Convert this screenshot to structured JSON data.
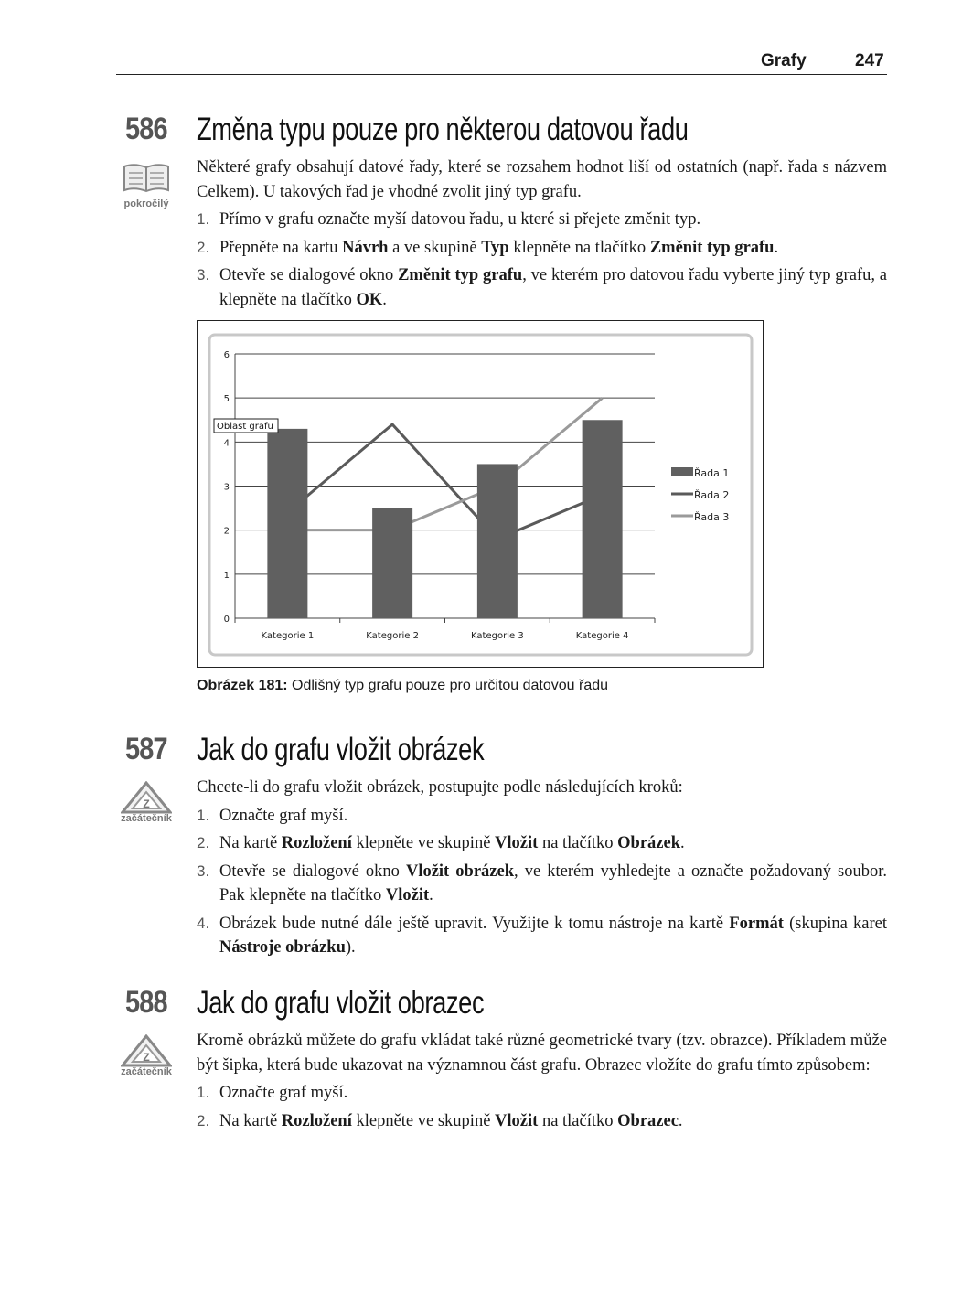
{
  "header": {
    "chapter": "Grafy",
    "page": "247"
  },
  "sections": [
    {
      "number": "586",
      "title": "Změna typu pouze pro některou datovou řadu",
      "badge": {
        "icon": "book-icon",
        "label": "pokročilý"
      },
      "paras": [
        [
          {
            "t": "Některé grafy obsahují datové řady, které se rozsahem hodnot liší od ostatních (např. řada s názvem Celkem). U takových řad je vhodné zvolit jiný typ grafu."
          }
        ]
      ],
      "steps": [
        {
          "n": "1.",
          "parts": [
            {
              "t": "Přímo v grafu označte myší datovou řadu, u které si přejete změnit typ."
            }
          ]
        },
        {
          "n": "2.",
          "parts": [
            {
              "t": "Přepněte na kartu "
            },
            {
              "t": "Návrh",
              "b": true
            },
            {
              "t": " a ve skupině "
            },
            {
              "t": "Typ",
              "b": true
            },
            {
              "t": " klepněte na tlačítko "
            },
            {
              "t": "Změnit typ grafu",
              "b": true
            },
            {
              "t": "."
            }
          ]
        },
        {
          "n": "3.",
          "parts": [
            {
              "t": "Otevře se dialogové okno "
            },
            {
              "t": "Změnit typ grafu",
              "b": true
            },
            {
              "t": ", ve kterém pro datovou řadu vyberte jiný typ grafu, a klepněte na tlačítko "
            },
            {
              "t": "OK",
              "b": true
            },
            {
              "t": "."
            }
          ]
        }
      ]
    },
    {
      "number": "587",
      "title": "Jak do grafu vložit obrázek",
      "badge": {
        "icon": "beginner-triangle-icon",
        "label": "začátečník"
      },
      "paras": [
        [
          {
            "t": "Chcete-li do grafu vložit obrázek, postupujte podle následujících kroků:"
          }
        ]
      ],
      "steps": [
        {
          "n": "1.",
          "parts": [
            {
              "t": "Označte graf myší."
            }
          ]
        },
        {
          "n": "2.",
          "parts": [
            {
              "t": "Na kartě "
            },
            {
              "t": "Rozložení",
              "b": true
            },
            {
              "t": " klepněte ve skupině "
            },
            {
              "t": "Vložit",
              "b": true
            },
            {
              "t": " na tlačítko "
            },
            {
              "t": "Obrázek",
              "b": true
            },
            {
              "t": "."
            }
          ]
        },
        {
          "n": "3.",
          "parts": [
            {
              "t": "Otevře se dialogové okno "
            },
            {
              "t": "Vložit obrázek",
              "b": true
            },
            {
              "t": ", ve kterém vyhledejte a označte požadovaný soubor. Pak klepněte na tlačítko "
            },
            {
              "t": "Vložit",
              "b": true
            },
            {
              "t": "."
            }
          ]
        },
        {
          "n": "4.",
          "parts": [
            {
              "t": "Obrázek bude nutné dále ještě upravit. Využijte k tomu nástroje na kartě "
            },
            {
              "t": "Formát",
              "b": true
            },
            {
              "t": " (skupina karet "
            },
            {
              "t": "Nástroje obrázku",
              "b": true
            },
            {
              "t": ")."
            }
          ]
        }
      ]
    },
    {
      "number": "588",
      "title": "Jak do grafu vložit obrazec",
      "badge": {
        "icon": "beginner-triangle-icon",
        "label": "začátečník"
      },
      "paras": [
        [
          {
            "t": "Kromě obrázků můžete do grafu vkládat také různé geometrické tvary (tzv. obrazce). Příkladem může být šipka, která bude ukazovat na významnou část grafu. Obrazec vložíte do grafu tímto způsobem:"
          }
        ]
      ],
      "steps": [
        {
          "n": "1.",
          "parts": [
            {
              "t": "Označte graf myší."
            }
          ]
        },
        {
          "n": "2.",
          "parts": [
            {
              "t": "Na kartě "
            },
            {
              "t": "Rozložení",
              "b": true
            },
            {
              "t": " klepněte ve skupině "
            },
            {
              "t": "Vložit",
              "b": true
            },
            {
              "t": " na tlačítko "
            },
            {
              "t": "Obrazec",
              "b": true
            },
            {
              "t": "."
            }
          ]
        }
      ]
    }
  ],
  "figure": {
    "caption_label": "Obrázek 181:",
    "caption_text": " Odlišný typ grafu pouze pro určitou datovou řadu",
    "tooltip": "Oblast grafu"
  },
  "chart_data": {
    "type": "bar",
    "categories": [
      "Kategorie 1",
      "Kategorie 2",
      "Kategorie 3",
      "Kategorie 4"
    ],
    "ylim": [
      0,
      6
    ],
    "yticks": [
      "0",
      "1",
      "2",
      "3",
      "4",
      "5",
      "6"
    ],
    "grid": true,
    "legend": "right",
    "series": [
      {
        "name": "Řada 1",
        "type": "bar",
        "values": [
          4.3,
          2.5,
          3.5,
          4.5
        ],
        "color": "#606060"
      },
      {
        "name": "Řada 2",
        "type": "line",
        "values": [
          2.4,
          4.4,
          1.8,
          2.8
        ],
        "color": "#5a5a5a"
      },
      {
        "name": "Řada 3",
        "type": "line",
        "values": [
          2,
          2,
          3,
          5
        ],
        "color": "#9a9a9a"
      }
    ]
  }
}
